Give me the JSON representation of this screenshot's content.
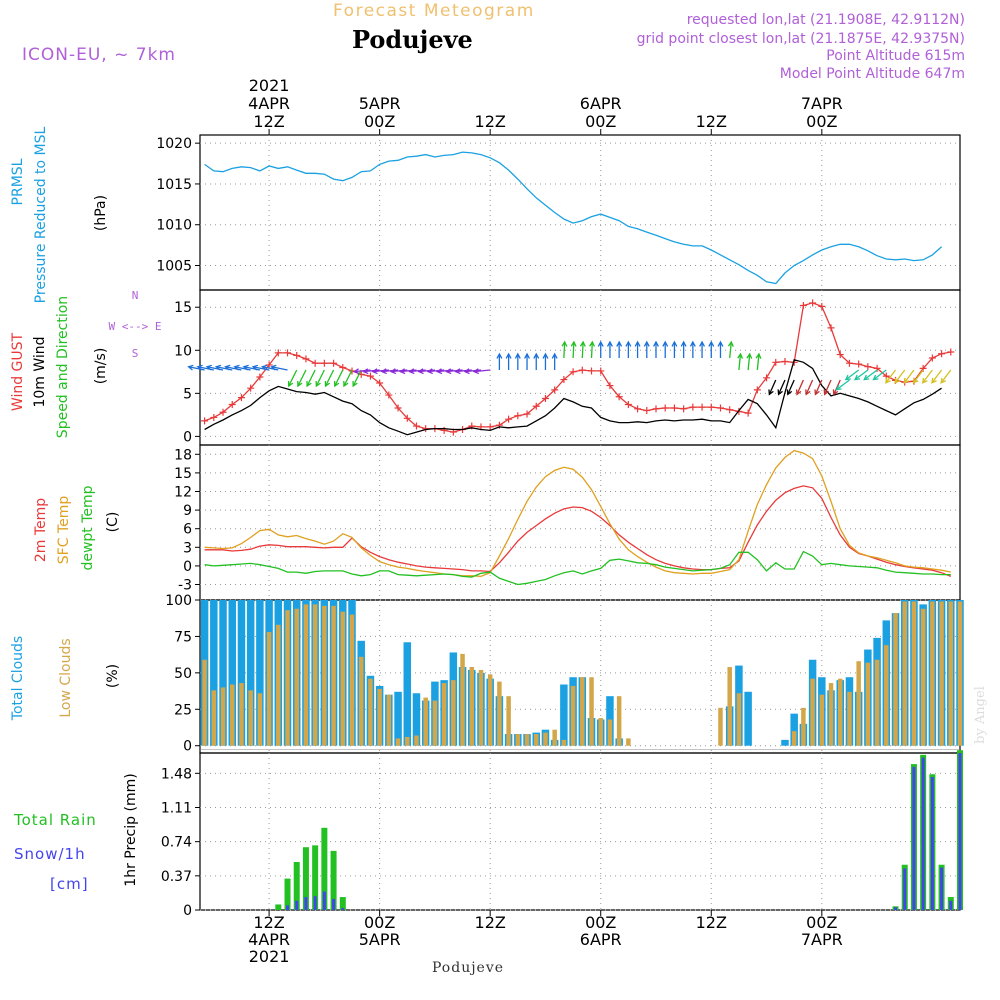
{
  "header": {
    "title": "Forecast Meteogram",
    "location": "Podujeve",
    "model": "ICON-EU, ~ 7km",
    "requested": "requested lon,lat (21.1908E, 42.9112N)",
    "gridpoint": "grid point closest lon,lat (21.1875E, 42.9375N)",
    "point_alt": "Point Altitude 615m",
    "model_alt": "Model Point Altitude 647m",
    "footer": "Podujeve",
    "credit": "by Angel"
  },
  "colors": {
    "pressure": "#1ba1e2",
    "gust": "#e83a3a",
    "wind": "#000000",
    "t2m": "#e83a3a",
    "sfc": "#e0a020",
    "dew": "#22c022",
    "total_cloud": "#1ba1e2",
    "low_cloud": "#d4a64a",
    "rain": "#22c022",
    "snow": "#4444ee",
    "label_purple": "#b060d8",
    "title_orange": "#f0c070"
  },
  "chart_data": [
    {
      "type": "line",
      "panel": "pressure",
      "ylabels": [
        "PRMSL",
        "Pressure Reduced to MSL",
        "(hPa)"
      ],
      "ylim": [
        1002,
        1021
      ],
      "yticks": [
        1005,
        1010,
        1015,
        1020
      ],
      "x_start_hour": -7,
      "x_step_hours": 1,
      "series": [
        {
          "values": [
            1017.4,
            1016.6,
            1016.5,
            1016.9,
            1017.1,
            1017.0,
            1016.6,
            1017.2,
            1016.9,
            1017.1,
            1016.7,
            1016.3,
            1016.3,
            1016.2,
            1015.6,
            1015.4,
            1015.8,
            1016.5,
            1016.6,
            1017.4,
            1017.8,
            1017.9,
            1018.3,
            1018.4,
            1018.6,
            1018.3,
            1018.5,
            1018.6,
            1018.9,
            1018.8,
            1018.6,
            1018.2,
            1017.6,
            1016.7,
            1015.6,
            1014.4,
            1013.3,
            1012.4,
            1011.5,
            1010.7,
            1010.2,
            1010.5,
            1011.0,
            1011.3,
            1010.9,
            1010.5,
            1009.8,
            1009.5,
            1009.1,
            1008.7,
            1008.3,
            1007.9,
            1007.6,
            1007.4,
            1007.4,
            1006.9,
            1006.3,
            1005.7,
            1005.1,
            1004.4,
            1003.8,
            1003.0,
            1002.8,
            1004.1,
            1005.0,
            1005.6,
            1006.3,
            1006.9,
            1007.3,
            1007.6,
            1007.6,
            1007.3,
            1006.8,
            1006.2,
            1005.8,
            1005.7,
            1005.8,
            1005.6,
            1005.7,
            1006.3,
            1007.3
          ]
        }
      ]
    },
    {
      "type": "line",
      "panel": "wind",
      "ylabels": [
        "Wind GUST",
        "10m Wind",
        "Speed and Direction",
        "(m/s)"
      ],
      "compass": [
        "N",
        "W <--> E",
        "S"
      ],
      "ylim": [
        -1,
        17
      ],
      "yticks": [
        0,
        5,
        10,
        15
      ],
      "x_start_hour": -7,
      "x_step_hours": 1,
      "series": [
        {
          "name": "Wind GUST",
          "values": [
            1.8,
            2.2,
            2.8,
            3.7,
            4.5,
            5.6,
            6.9,
            8.3,
            9.7,
            9.7,
            9.4,
            9.0,
            8.5,
            8.5,
            8.5,
            8.0,
            7.6,
            7.2,
            7.0,
            6.2,
            4.8,
            3.3,
            2.1,
            1.2,
            0.9,
            0.9,
            0.7,
            0.5,
            0.8,
            1.2,
            1.1,
            1.1,
            1.3,
            2.0,
            2.4,
            2.6,
            3.5,
            4.4,
            5.4,
            6.6,
            7.5,
            7.7,
            7.6,
            7.6,
            5.9,
            4.6,
            3.7,
            3.2,
            3.0,
            3.2,
            3.3,
            3.3,
            3.2,
            3.4,
            3.4,
            3.4,
            3.3,
            3.1,
            2.9,
            2.7,
            5.4,
            6.8,
            8.6,
            8.7,
            8.6,
            15.2,
            15.5,
            15.1,
            12.6,
            9.5,
            8.5,
            8.4,
            8.1,
            7.9,
            7.0,
            6.5,
            6.3,
            6.4,
            7.9,
            9.1,
            9.6,
            9.8
          ]
        },
        {
          "name": "10m Wind",
          "values": [
            0.8,
            1.4,
            1.9,
            2.5,
            3.0,
            3.6,
            4.5,
            5.3,
            5.8,
            5.5,
            5.2,
            5.1,
            4.9,
            5.1,
            4.6,
            4.1,
            3.8,
            3.0,
            2.5,
            1.6,
            1.0,
            0.6,
            0.2,
            0.5,
            0.8,
            0.9,
            0.9,
            0.8,
            0.8,
            1.0,
            0.8,
            0.7,
            1.1,
            1.0,
            1.1,
            1.2,
            1.8,
            2.4,
            3.3,
            4.4,
            4.0,
            3.5,
            3.3,
            2.2,
            1.8,
            1.6,
            1.6,
            1.7,
            1.6,
            1.8,
            1.9,
            1.8,
            1.9,
            1.9,
            2.0,
            1.8,
            1.8,
            1.6,
            3.0,
            4.3,
            3.8,
            2.5,
            1.0,
            5.1,
            8.9,
            8.6,
            7.9,
            5.9,
            4.7,
            5.0,
            4.7,
            4.4,
            4.0,
            3.5,
            3.0,
            2.5,
            3.2,
            3.9,
            4.3,
            4.9,
            5.6
          ]
        }
      ]
    },
    {
      "type": "line",
      "panel": "temperature",
      "ylabels": [
        "2m Temp",
        "SFC Temp",
        "dewpt Temp",
        "(C)"
      ],
      "ylim": [
        -5.5,
        19.5
      ],
      "yticks": [
        -3,
        0,
        3,
        6,
        9,
        12,
        15,
        18
      ],
      "x_start_hour": -7,
      "x_step_hours": 1,
      "series": [
        {
          "name": "2m Temp",
          "values": [
            2.6,
            2.6,
            2.6,
            2.4,
            2.5,
            2.7,
            3.2,
            3.4,
            3.3,
            3.1,
            3.1,
            3.1,
            3.0,
            2.9,
            3.0,
            3.0,
            4.5,
            3.1,
            2.2,
            1.5,
            1.0,
            0.6,
            0.3,
            0.0,
            -0.2,
            -0.3,
            -0.4,
            -0.5,
            -0.6,
            -0.8,
            -0.8,
            -0.9,
            0.5,
            2.2,
            4.0,
            5.4,
            6.5,
            7.6,
            8.5,
            9.2,
            9.5,
            9.4,
            8.8,
            7.8,
            6.5,
            5.0,
            3.8,
            2.8,
            1.8,
            1.0,
            0.4,
            0.0,
            -0.3,
            -0.5,
            -0.6,
            -0.6,
            -0.4,
            -0.3,
            0.8,
            3.8,
            6.6,
            8.8,
            10.6,
            11.8,
            12.5,
            12.9,
            12.6,
            10.9,
            7.8,
            5.0,
            3.0,
            2.0,
            1.6,
            1.1,
            0.6,
            0.2,
            -0.1,
            -0.3,
            -0.5,
            -0.7,
            -1.1,
            -1.7
          ]
        },
        {
          "name": "SFC Temp",
          "values": [
            3.0,
            2.9,
            2.8,
            2.9,
            3.6,
            4.6,
            5.7,
            5.9,
            5.0,
            4.7,
            4.9,
            4.4,
            4.0,
            3.5,
            4.0,
            5.2,
            4.6,
            2.9,
            1.7,
            0.7,
            0.2,
            -0.2,
            -0.4,
            -0.7,
            -0.9,
            -1.1,
            -1.3,
            -1.4,
            -1.6,
            -1.6,
            -1.7,
            -1.1,
            1.6,
            4.4,
            7.5,
            10.4,
            12.7,
            14.4,
            15.4,
            15.9,
            15.6,
            14.3,
            12.3,
            9.6,
            6.8,
            4.3,
            2.6,
            1.5,
            0.6,
            -0.2,
            -0.8,
            -1.1,
            -1.2,
            -1.3,
            -1.2,
            -1.2,
            -0.9,
            -0.6,
            1.0,
            5.6,
            9.9,
            13.1,
            15.8,
            17.5,
            18.6,
            18.2,
            17.3,
            14.5,
            10.4,
            6.0,
            3.3,
            2.1,
            1.6,
            1.3,
            0.9,
            0.5,
            0.0,
            -0.2,
            -0.3,
            -0.5,
            -0.7,
            -1.0
          ]
        },
        {
          "name": "dewpt Temp",
          "values": [
            0.2,
            0.0,
            0.1,
            0.2,
            0.3,
            0.4,
            0.2,
            -0.1,
            -0.4,
            -1.0,
            -1.0,
            -1.2,
            -0.9,
            -0.8,
            -0.8,
            -0.8,
            -1.3,
            -1.6,
            -1.4,
            -0.8,
            -0.8,
            -1.4,
            -1.5,
            -1.6,
            -1.5,
            -1.4,
            -1.3,
            -1.4,
            -1.7,
            -1.8,
            -1.2,
            -1.0,
            -2.0,
            -2.5,
            -3.0,
            -2.8,
            -2.5,
            -2.2,
            -1.6,
            -1.1,
            -0.8,
            -1.3,
            -0.8,
            -0.4,
            0.9,
            1.1,
            0.8,
            0.5,
            0.4,
            0.2,
            -0.2,
            -0.4,
            -0.6,
            -0.8,
            -0.7,
            -0.6,
            -0.4,
            0.2,
            2.2,
            2.2,
            1.0,
            -0.8,
            0.5,
            -0.5,
            -0.5,
            2.3,
            1.6,
            0.2,
            0.4,
            0.2,
            0.0,
            -0.1,
            -0.2,
            -0.3,
            -0.7,
            -1.0,
            -1.1,
            -1.2,
            -1.3,
            -1.3,
            -1.4,
            -1.4
          ]
        }
      ]
    },
    {
      "type": "bar",
      "panel": "clouds",
      "ylabels": [
        "Total Clouds",
        "Low Clouds",
        "(%)"
      ],
      "ylim": [
        -5,
        100
      ],
      "yticks": [
        0,
        25,
        50,
        75,
        100
      ],
      "x_start_hour": -7,
      "x_step_hours": 1,
      "series": [
        {
          "name": "Total Clouds",
          "values": [
            100,
            100,
            100,
            100,
            100,
            100,
            100,
            100,
            100,
            100,
            100,
            100,
            100,
            100,
            100,
            100,
            100,
            72,
            48,
            41,
            35,
            37,
            71,
            36,
            31,
            44,
            45,
            64,
            54,
            52,
            50,
            46,
            34,
            8,
            8,
            8,
            9,
            11,
            4,
            42,
            47,
            47,
            19,
            18,
            34,
            5,
            0,
            0,
            0,
            0,
            0,
            0,
            0,
            0,
            0,
            0,
            0,
            27,
            55,
            37,
            0,
            0,
            0,
            4,
            22,
            15,
            59,
            47,
            38,
            45,
            47,
            37,
            66,
            74,
            86,
            91,
            100,
            100,
            97,
            100,
            100,
            100,
            100
          ]
        },
        {
          "name": "Low Clouds",
          "values": [
            59,
            38,
            40,
            42,
            43,
            38,
            36,
            78,
            83,
            93,
            94,
            97,
            97,
            96,
            96,
            92,
            90,
            61,
            46,
            39,
            35,
            5,
            6,
            7,
            33,
            31,
            43,
            45,
            63,
            54,
            52,
            49,
            44,
            34,
            8,
            8,
            8,
            9,
            11,
            4,
            41,
            47,
            47,
            19,
            18,
            34,
            5,
            0,
            0,
            0,
            0,
            0,
            0,
            0,
            0,
            0,
            26,
            54,
            36,
            0,
            0,
            0,
            0,
            0,
            10,
            26,
            46,
            35,
            43,
            46,
            37,
            58,
            57,
            59,
            69,
            91,
            99,
            99,
            94,
            99,
            99,
            99,
            99
          ]
        }
      ]
    },
    {
      "type": "bar",
      "panel": "precip",
      "ylabels": [
        "Total Rain",
        "Snow/1h",
        "[cm]",
        "1hr Precip (mm)"
      ],
      "ylim": [
        0,
        1.7
      ],
      "yticks": [
        0,
        0.37,
        0.74,
        1.11,
        1.48
      ],
      "x_start_hour": -7,
      "x_step_hours": 1,
      "series": [
        {
          "name": "Total Rain",
          "values": [
            0,
            0,
            0,
            0,
            0,
            0,
            0,
            0,
            0.06,
            0.34,
            0.52,
            0.68,
            0.7,
            0.89,
            0.64,
            0.14,
            0,
            0,
            0,
            0,
            0,
            0,
            0,
            0,
            0,
            0,
            0,
            0,
            0,
            0,
            0,
            0,
            0,
            0,
            0,
            0,
            0,
            0,
            0,
            0,
            0,
            0,
            0,
            0,
            0,
            0,
            0,
            0,
            0,
            0,
            0,
            0,
            0,
            0,
            0,
            0,
            0,
            0,
            0,
            0,
            0,
            0,
            0,
            0,
            0,
            0,
            0,
            0,
            0,
            0,
            0,
            0,
            0,
            0,
            0,
            0.04,
            0.49,
            1.58,
            1.68,
            1.47,
            0.49,
            0.14,
            1.73
          ]
        },
        {
          "name": "Snow/1h",
          "values": [
            0,
            0,
            0,
            0,
            0,
            0,
            0,
            0,
            0,
            0.05,
            0.1,
            0.14,
            0.15,
            0.2,
            0.12,
            0.02,
            0,
            0,
            0,
            0,
            0,
            0,
            0,
            0,
            0,
            0,
            0,
            0,
            0,
            0,
            0,
            0,
            0,
            0,
            0,
            0,
            0,
            0,
            0,
            0,
            0,
            0,
            0,
            0,
            0,
            0,
            0,
            0,
            0,
            0,
            0,
            0,
            0,
            0,
            0,
            0,
            0,
            0,
            0,
            0,
            0,
            0,
            0,
            0,
            0,
            0,
            0,
            0,
            0,
            0,
            0,
            0,
            0,
            0,
            0,
            0.03,
            0.45,
            1.55,
            1.65,
            1.44,
            0.46,
            0.1,
            1.7
          ]
        }
      ]
    }
  ],
  "axis": {
    "x_range_hours": [
      -7.5,
      75
    ],
    "top_ticks": [
      {
        "hour": 0,
        "lines": [
          "2021",
          "4APR",
          "12Z"
        ]
      },
      {
        "hour": 12,
        "lines": [
          "5APR",
          "00Z"
        ]
      },
      {
        "hour": 24,
        "lines": [
          "12Z"
        ]
      },
      {
        "hour": 36,
        "lines": [
          "6APR",
          "00Z"
        ]
      },
      {
        "hour": 48,
        "lines": [
          "12Z"
        ]
      },
      {
        "hour": 60,
        "lines": [
          "7APR",
          "00Z"
        ]
      }
    ],
    "bottom_ticks": [
      {
        "hour": 0,
        "lines": [
          "12Z",
          "4APR",
          "2021"
        ]
      },
      {
        "hour": 12,
        "lines": [
          "00Z",
          "5APR"
        ]
      },
      {
        "hour": 24,
        "lines": [
          "12Z"
        ]
      },
      {
        "hour": 36,
        "lines": [
          "00Z",
          "6APR"
        ]
      },
      {
        "hour": 48,
        "lines": [
          "12Z"
        ]
      },
      {
        "hour": 60,
        "lines": [
          "00Z",
          "7APR"
        ]
      }
    ]
  }
}
